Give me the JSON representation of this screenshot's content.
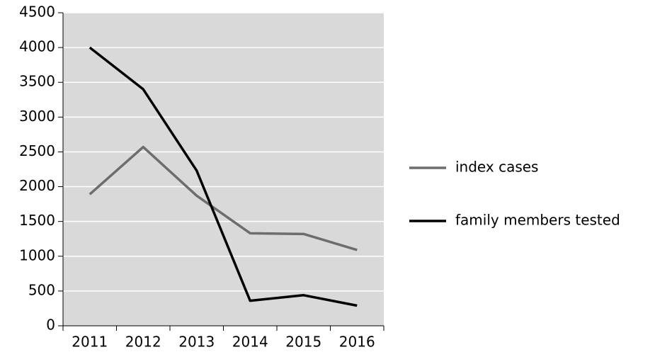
{
  "chart_data": {
    "type": "line",
    "categories": [
      "2011",
      "2012",
      "2013",
      "2014",
      "2015",
      "2016"
    ],
    "series": [
      {
        "name": "index cases",
        "color": "#6d6d6d",
        "values": [
          1890,
          2570,
          1870,
          1330,
          1320,
          1090
        ]
      },
      {
        "name": "family members tested",
        "color": "#000000",
        "values": [
          4000,
          3400,
          2230,
          360,
          440,
          290
        ]
      }
    ],
    "ylim": [
      0,
      4500
    ],
    "yticks": [
      0,
      500,
      1000,
      1500,
      2000,
      2500,
      3000,
      3500,
      4000,
      4500
    ],
    "grid": true,
    "legend": "right",
    "plot_background": "#d9d9d9"
  }
}
